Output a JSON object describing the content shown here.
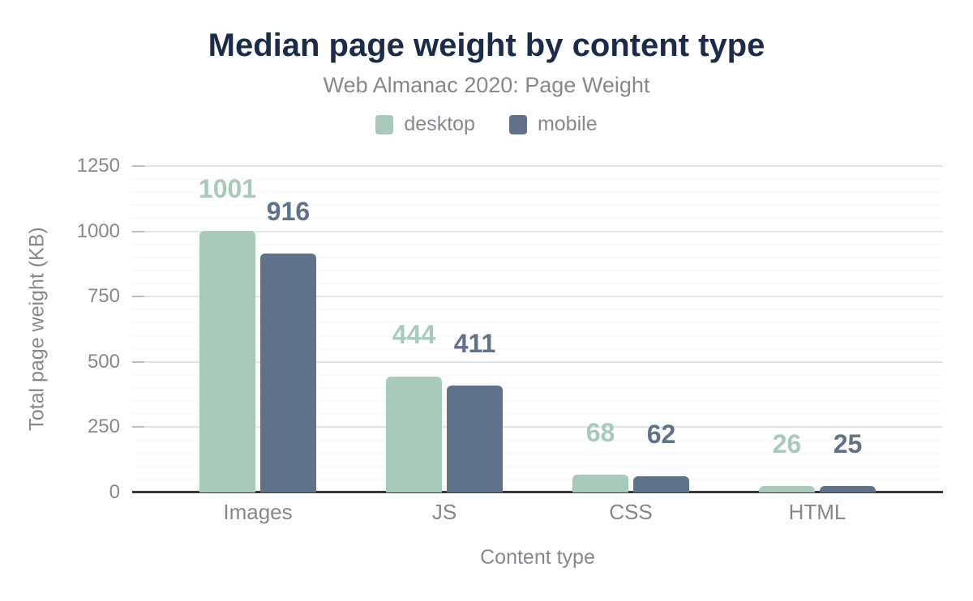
{
  "chart_data": {
    "type": "bar",
    "title": "Median page weight by content type",
    "subtitle": "Web Almanac 2020: Page Weight",
    "xlabel": "Content type",
    "ylabel": "Total page weight (KB)",
    "categories": [
      "Images",
      "JS",
      "CSS",
      "HTML"
    ],
    "series": [
      {
        "name": "desktop",
        "color": "#a8cabb",
        "values": [
          1001,
          444,
          68,
          26
        ]
      },
      {
        "name": "mobile",
        "color": "#60718c",
        "values": [
          916,
          411,
          62,
          25
        ]
      }
    ],
    "ylim": [
      0,
      1250
    ],
    "yticks": [
      0,
      250,
      500,
      750,
      1000,
      1250
    ],
    "minor_grid_step": 50,
    "grid": true,
    "legend_position": "top",
    "colors": {
      "background": "#ffffff",
      "title": "#1b2b4a",
      "axis_text": "#85898f",
      "axis_line": "#34353b",
      "major_grid": "#e4e5e9",
      "minor_grid": "#f4f4f7",
      "tick": "#bcbfc5"
    }
  }
}
